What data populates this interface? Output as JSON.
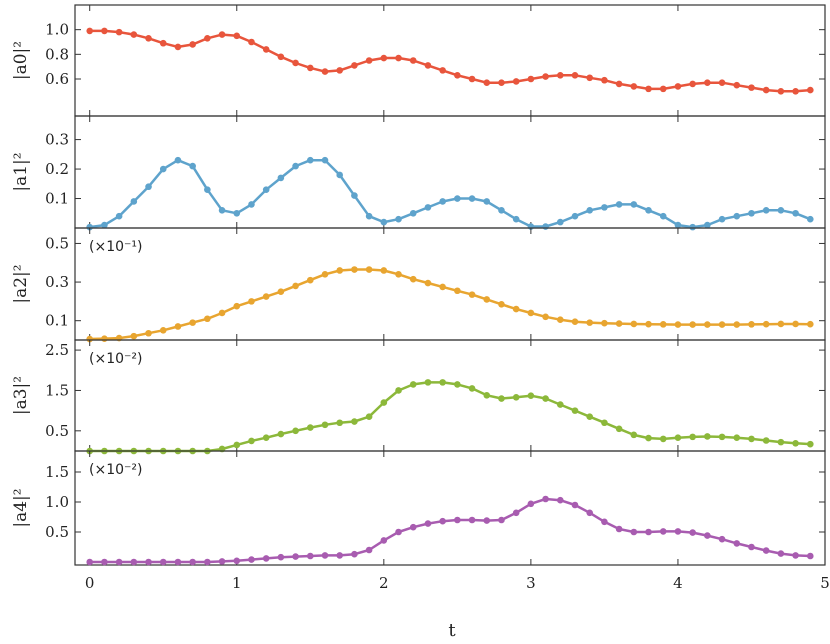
{
  "chart_data": {
    "type": "line",
    "xlabel": "t",
    "xlim": [
      -0.1,
      5.0
    ],
    "xticks": [
      0,
      1,
      2,
      3,
      4,
      5
    ],
    "xtick_labels": [
      "0",
      "1",
      "2",
      "3",
      "4",
      "5"
    ],
    "x": [
      0,
      0.1,
      0.2,
      0.3,
      0.4,
      0.5,
      0.6,
      0.7,
      0.8,
      0.9,
      1.0,
      1.1,
      1.2,
      1.3,
      1.4,
      1.5,
      1.6,
      1.7,
      1.8,
      1.9,
      2.0,
      2.1,
      2.2,
      2.3,
      2.4,
      2.5,
      2.6,
      2.7,
      2.8,
      2.9,
      3.0,
      3.1,
      3.2,
      3.3,
      3.4,
      3.5,
      3.6,
      3.7,
      3.8,
      3.9,
      4.0,
      4.1,
      4.2,
      4.3,
      4.4,
      4.5,
      4.6,
      4.7,
      4.8,
      4.9
    ],
    "panels": [
      {
        "ylabel": "|a0|²",
        "ylim": [
          0.3,
          1.2
        ],
        "yticks": [
          0.6,
          0.8,
          1.0
        ],
        "ytick_labels": [
          "0.6",
          "0.8",
          "1.0"
        ],
        "annotation": "",
        "color": "#e8553c",
        "values": [
          0.99,
          0.99,
          0.98,
          0.96,
          0.93,
          0.89,
          0.86,
          0.88,
          0.93,
          0.96,
          0.95,
          0.9,
          0.84,
          0.78,
          0.73,
          0.69,
          0.66,
          0.67,
          0.71,
          0.75,
          0.77,
          0.77,
          0.75,
          0.71,
          0.67,
          0.63,
          0.6,
          0.57,
          0.57,
          0.58,
          0.6,
          0.62,
          0.63,
          0.63,
          0.61,
          0.59,
          0.56,
          0.54,
          0.52,
          0.52,
          0.54,
          0.56,
          0.57,
          0.57,
          0.55,
          0.53,
          0.51,
          0.5,
          0.5,
          0.51
        ]
      },
      {
        "ylabel": "|a1|²",
        "ylim": [
          0.0,
          0.38
        ],
        "yticks": [
          0.1,
          0.2,
          0.3
        ],
        "ytick_labels": [
          "0.1",
          "0.2",
          "0.3"
        ],
        "annotation": "",
        "color": "#5ea3cc",
        "values": [
          0.003,
          0.01,
          0.04,
          0.09,
          0.14,
          0.2,
          0.23,
          0.21,
          0.13,
          0.06,
          0.05,
          0.08,
          0.13,
          0.17,
          0.21,
          0.23,
          0.23,
          0.18,
          0.11,
          0.04,
          0.02,
          0.03,
          0.05,
          0.07,
          0.09,
          0.1,
          0.1,
          0.09,
          0.06,
          0.03,
          0.005,
          0.005,
          0.02,
          0.04,
          0.06,
          0.07,
          0.08,
          0.08,
          0.06,
          0.04,
          0.01,
          0.003,
          0.01,
          0.03,
          0.04,
          0.05,
          0.06,
          0.06,
          0.05,
          0.03
        ]
      },
      {
        "ylabel": "|a2|²",
        "ylim": [
          0.0,
          0.58
        ],
        "yticks": [
          0.1,
          0.3,
          0.5
        ],
        "ytick_labels": [
          "0.1",
          "0.3",
          "0.5"
        ],
        "annotation": "(×10⁻¹)",
        "color": "#e8a530",
        "values": [
          0.005,
          0.007,
          0.01,
          0.02,
          0.035,
          0.05,
          0.07,
          0.09,
          0.11,
          0.14,
          0.175,
          0.2,
          0.225,
          0.25,
          0.28,
          0.31,
          0.34,
          0.36,
          0.365,
          0.365,
          0.36,
          0.34,
          0.315,
          0.295,
          0.275,
          0.255,
          0.235,
          0.21,
          0.185,
          0.16,
          0.14,
          0.12,
          0.105,
          0.095,
          0.09,
          0.087,
          0.085,
          0.083,
          0.082,
          0.081,
          0.08,
          0.08,
          0.08,
          0.08,
          0.08,
          0.081,
          0.082,
          0.083,
          0.083,
          0.082
        ]
      },
      {
        "ylabel": "|a3|²",
        "ylim": [
          0.0,
          2.75
        ],
        "yticks": [
          0.5,
          1.5,
          2.5
        ],
        "ytick_labels": [
          "0.5",
          "1.5",
          "2.5"
        ],
        "annotation": "(×10⁻²)",
        "color": "#8cb83a",
        "values": [
          0.0,
          0.0,
          0.0,
          0.0,
          0.0,
          0.0,
          0.0,
          0.0,
          0.0,
          0.05,
          0.15,
          0.25,
          0.33,
          0.42,
          0.5,
          0.58,
          0.65,
          0.7,
          0.73,
          0.85,
          1.2,
          1.5,
          1.65,
          1.7,
          1.7,
          1.65,
          1.55,
          1.38,
          1.3,
          1.33,
          1.37,
          1.3,
          1.15,
          1.0,
          0.85,
          0.7,
          0.55,
          0.4,
          0.32,
          0.3,
          0.33,
          0.35,
          0.36,
          0.35,
          0.33,
          0.3,
          0.26,
          0.22,
          0.19,
          0.17
        ]
      },
      {
        "ylabel": "|a4|²",
        "ylim": [
          -0.05,
          1.85
        ],
        "yticks": [
          0.5,
          1.0,
          1.5
        ],
        "ytick_labels": [
          "0.5",
          "1.0",
          "1.5"
        ],
        "annotation": "(×10⁻²)",
        "color": "#a85cb0",
        "values": [
          0.0,
          0.0,
          0.0,
          0.0,
          0.0,
          0.0,
          0.0,
          0.0,
          0.0,
          0.01,
          0.02,
          0.04,
          0.06,
          0.08,
          0.09,
          0.1,
          0.11,
          0.11,
          0.13,
          0.2,
          0.36,
          0.5,
          0.58,
          0.64,
          0.68,
          0.7,
          0.7,
          0.69,
          0.7,
          0.82,
          0.97,
          1.05,
          1.03,
          0.95,
          0.82,
          0.67,
          0.55,
          0.5,
          0.5,
          0.51,
          0.51,
          0.49,
          0.44,
          0.38,
          0.31,
          0.25,
          0.19,
          0.14,
          0.11,
          0.1
        ]
      }
    ]
  }
}
